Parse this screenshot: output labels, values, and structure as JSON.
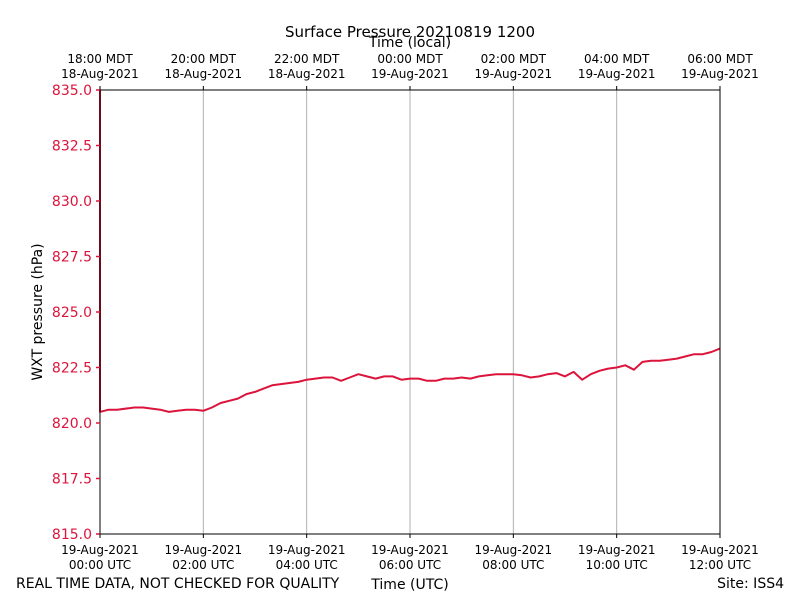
{
  "colors": {
    "series": "#dc143c",
    "grid": "#b0b0b0",
    "axis": "#000000",
    "background": "#ffffff"
  },
  "chart_data": {
    "type": "line",
    "title": "Surface Pressure 20210819 1200",
    "xlabel": "Time (UTC)",
    "xlabel_top": "Time (local)",
    "ylabel": "WXT pressure (hPa)",
    "xlim": [
      "2021-08-19 00:00 UTC",
      "2021-08-19 12:00 UTC"
    ],
    "ylim": [
      815.0,
      835.0
    ],
    "grid": "vertical lines at x ticks",
    "y_ticks": [
      "815.0",
      "817.5",
      "820.0",
      "822.5",
      "825.0",
      "827.5",
      "830.0",
      "832.5",
      "835.0"
    ],
    "x_ticks_bottom": [
      {
        "time": "2021-08-19 00:00 UTC",
        "line1": "19-Aug-2021",
        "line2": "00:00 UTC"
      },
      {
        "time": "2021-08-19 02:00 UTC",
        "line1": "19-Aug-2021",
        "line2": "02:00 UTC"
      },
      {
        "time": "2021-08-19 04:00 UTC",
        "line1": "19-Aug-2021",
        "line2": "04:00 UTC"
      },
      {
        "time": "2021-08-19 06:00 UTC",
        "line1": "19-Aug-2021",
        "line2": "06:00 UTC"
      },
      {
        "time": "2021-08-19 08:00 UTC",
        "line1": "19-Aug-2021",
        "line2": "08:00 UTC"
      },
      {
        "time": "2021-08-19 10:00 UTC",
        "line1": "19-Aug-2021",
        "line2": "10:00 UTC"
      },
      {
        "time": "2021-08-19 12:00 UTC",
        "line1": "19-Aug-2021",
        "line2": "12:00 UTC"
      }
    ],
    "x_ticks_top": [
      {
        "time": "2021-08-19 00:00 UTC",
        "line1": "18:00 MDT",
        "line2": "18-Aug-2021"
      },
      {
        "time": "2021-08-19 02:00 UTC",
        "line1": "20:00 MDT",
        "line2": "18-Aug-2021"
      },
      {
        "time": "2021-08-19 04:00 UTC",
        "line1": "22:00 MDT",
        "line2": "18-Aug-2021"
      },
      {
        "time": "2021-08-19 06:00 UTC",
        "line1": "00:00 MDT",
        "line2": "19-Aug-2021"
      },
      {
        "time": "2021-08-19 08:00 UTC",
        "line1": "02:00 MDT",
        "line2": "19-Aug-2021"
      },
      {
        "time": "2021-08-19 10:00 UTC",
        "line1": "04:00 MDT",
        "line2": "19-Aug-2021"
      },
      {
        "time": "2021-08-19 12:00 UTC",
        "line1": "06:00 MDT",
        "line2": "19-Aug-2021"
      }
    ],
    "series": [
      {
        "x": [
          "2021-08-19 00:00 UTC",
          "2021-08-19 00:00 UTC",
          "2021-08-19 00:05 UTC",
          "2021-08-19 00:10 UTC",
          "2021-08-19 00:20 UTC",
          "2021-08-19 00:40 UTC",
          "2021-08-19 00:50 UTC",
          "2021-08-19 01:00 UTC",
          "2021-08-19 01:10 UTC",
          "2021-08-19 01:20 UTC",
          "2021-08-19 01:30 UTC",
          "2021-08-19 01:40 UTC",
          "2021-08-19 01:50 UTC",
          "2021-08-19 02:00 UTC",
          "2021-08-19 02:10 UTC",
          "2021-08-19 02:20 UTC",
          "2021-08-19 02:30 UTC",
          "2021-08-19 02:40 UTC",
          "2021-08-19 02:50 UTC",
          "2021-08-19 03:00 UTC",
          "2021-08-19 03:10 UTC",
          "2021-08-19 03:20 UTC",
          "2021-08-19 03:30 UTC",
          "2021-08-19 03:40 UTC",
          "2021-08-19 03:50 UTC",
          "2021-08-19 04:00 UTC",
          "2021-08-19 04:10 UTC",
          "2021-08-19 04:20 UTC",
          "2021-08-19 04:30 UTC",
          "2021-08-19 04:40 UTC",
          "2021-08-19 04:50 UTC",
          "2021-08-19 05:00 UTC",
          "2021-08-19 05:10 UTC",
          "2021-08-19 05:20 UTC",
          "2021-08-19 05:30 UTC",
          "2021-08-19 05:40 UTC",
          "2021-08-19 05:50 UTC",
          "2021-08-19 06:00 UTC",
          "2021-08-19 06:10 UTC",
          "2021-08-19 06:20 UTC",
          "2021-08-19 06:30 UTC",
          "2021-08-19 06:40 UTC",
          "2021-08-19 06:50 UTC",
          "2021-08-19 07:00 UTC",
          "2021-08-19 07:10 UTC",
          "2021-08-19 07:20 UTC",
          "2021-08-19 07:30 UTC",
          "2021-08-19 07:40 UTC",
          "2021-08-19 07:50 UTC",
          "2021-08-19 08:00 UTC",
          "2021-08-19 08:10 UTC",
          "2021-08-19 08:20 UTC",
          "2021-08-19 08:30 UTC",
          "2021-08-19 08:40 UTC",
          "2021-08-19 08:50 UTC",
          "2021-08-19 09:00 UTC",
          "2021-08-19 09:10 UTC",
          "2021-08-19 09:20 UTC",
          "2021-08-19 09:30 UTC",
          "2021-08-19 09:40 UTC",
          "2021-08-19 09:50 UTC",
          "2021-08-19 10:00 UTC",
          "2021-08-19 10:10 UTC",
          "2021-08-19 10:20 UTC",
          "2021-08-19 10:30 UTC",
          "2021-08-19 10:40 UTC",
          "2021-08-19 10:50 UTC",
          "2021-08-19 11:00 UTC",
          "2021-08-19 11:10 UTC",
          "2021-08-19 11:20 UTC",
          "2021-08-19 11:30 UTC",
          "2021-08-19 11:40 UTC",
          "2021-08-19 11:50 UTC",
          "2021-08-19 12:00 UTC"
        ],
        "y": [
          835.0,
          820.5,
          820.55,
          820.6,
          820.6,
          820.7,
          820.7,
          820.65,
          820.6,
          820.5,
          820.55,
          820.6,
          820.6,
          820.55,
          820.7,
          820.9,
          821.0,
          821.1,
          821.3,
          821.4,
          821.55,
          821.7,
          821.75,
          821.8,
          821.85,
          821.95,
          822.0,
          822.05,
          822.05,
          821.9,
          822.05,
          822.2,
          822.1,
          822.0,
          822.1,
          822.1,
          821.95,
          822.0,
          822.0,
          821.9,
          821.9,
          822.0,
          822.0,
          822.05,
          822.0,
          822.1,
          822.15,
          822.2,
          822.2,
          822.2,
          822.15,
          822.05,
          822.1,
          822.2,
          822.25,
          822.1,
          822.3,
          821.95,
          822.2,
          822.35,
          822.45,
          822.5,
          822.6,
          822.4,
          822.75,
          822.8,
          822.8,
          822.85,
          822.9,
          823.0,
          823.1,
          823.1,
          823.2,
          823.35
        ]
      }
    ]
  },
  "footer": {
    "left": "REAL TIME DATA, NOT CHECKED FOR QUALITY",
    "right": "Site: ISS4"
  }
}
